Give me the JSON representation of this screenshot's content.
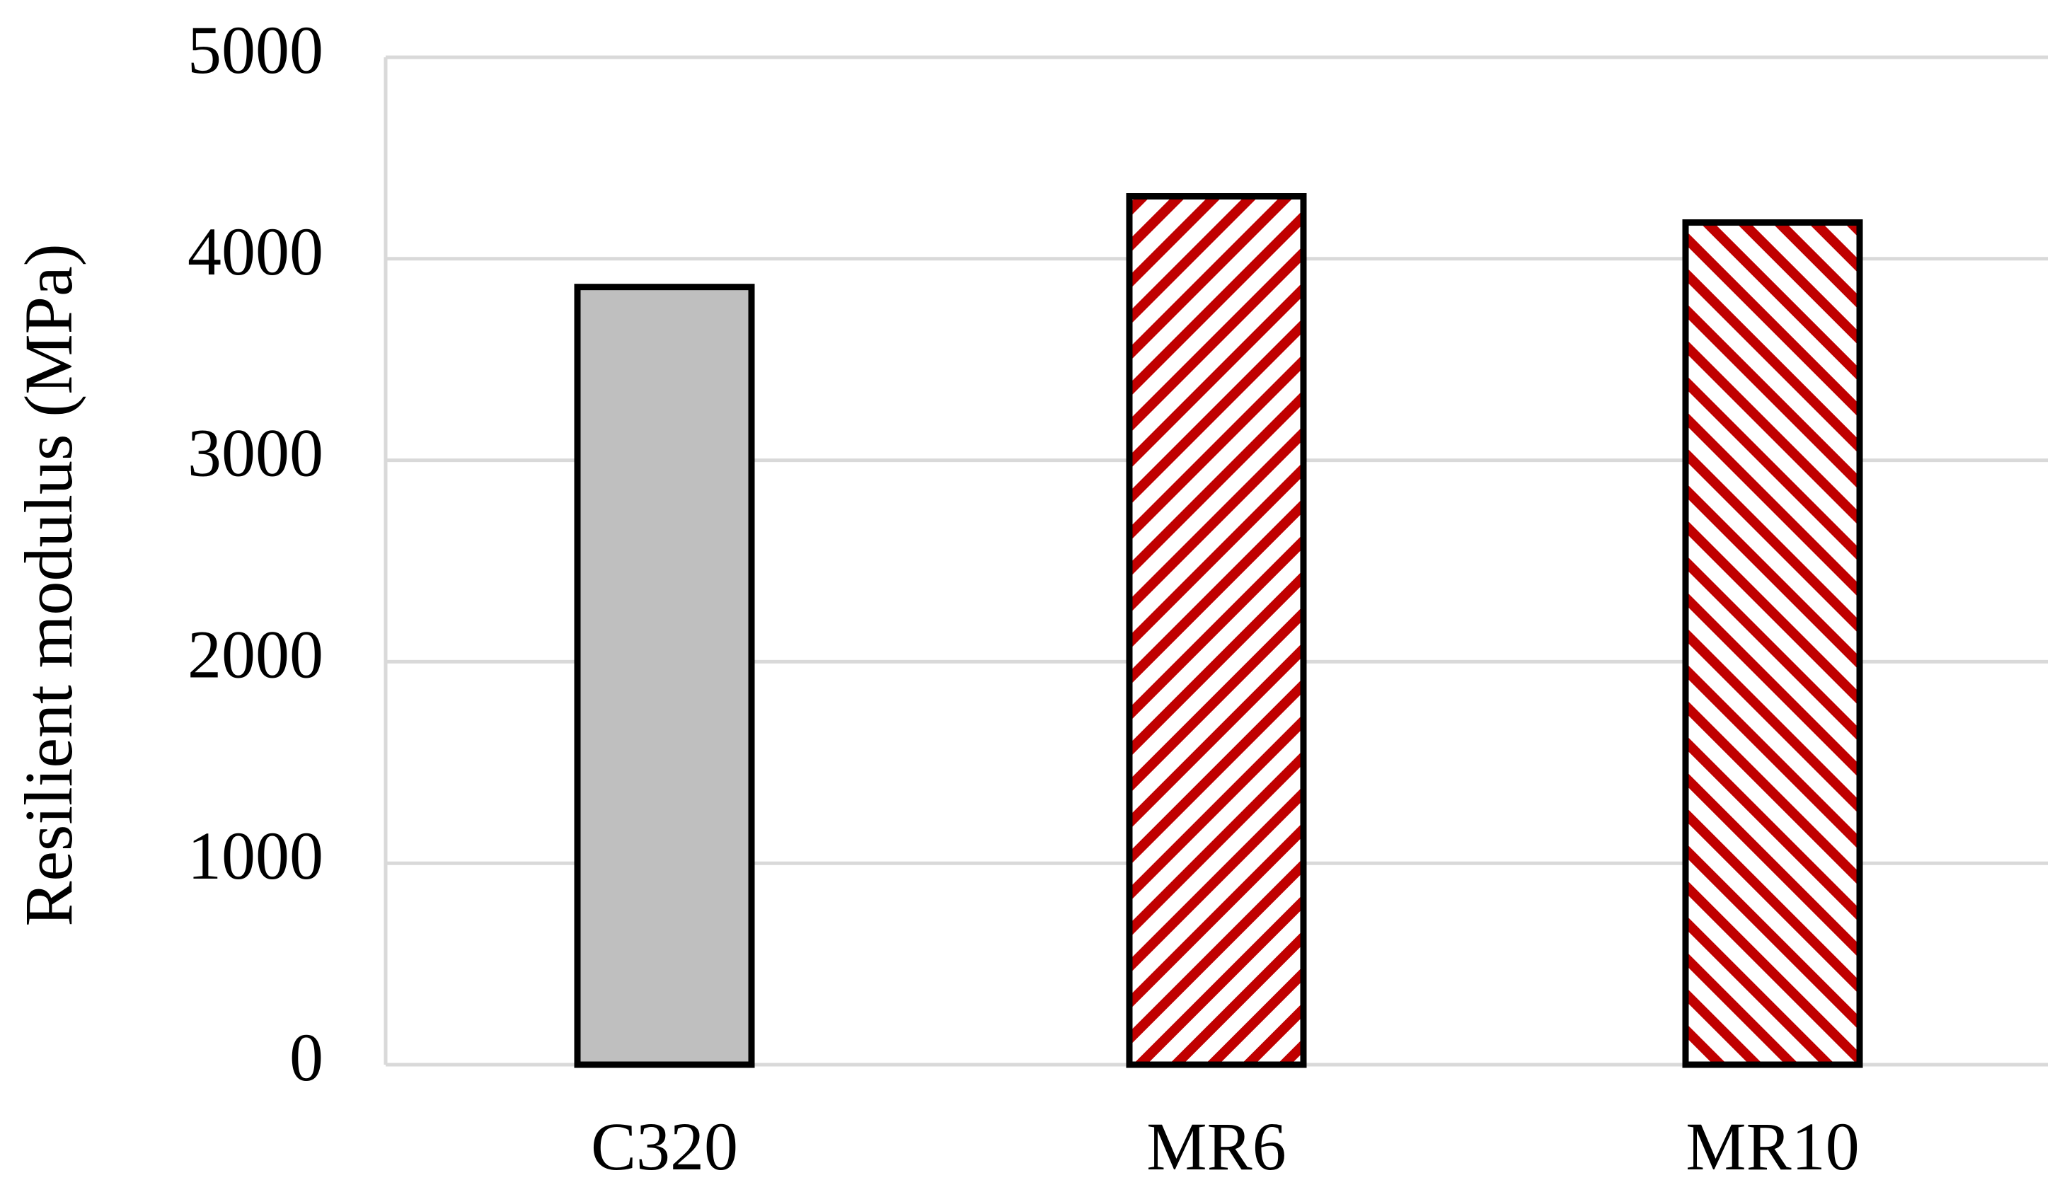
{
  "chart_data": {
    "type": "bar",
    "y_label": "Resilient modulus (MPa)",
    "categories": [
      "C320",
      "MR6",
      "MR10"
    ],
    "values": [
      3860,
      4310,
      4180
    ],
    "colors": [
      "#bfbfbf",
      "#c00000",
      "#c00000"
    ],
    "hatch": [
      null,
      "\\",
      "/"
    ],
    "ylim": [
      0,
      5000
    ],
    "yticks": [
      0,
      1000,
      2000,
      3000,
      4000,
      5000
    ],
    "grid": true
  }
}
